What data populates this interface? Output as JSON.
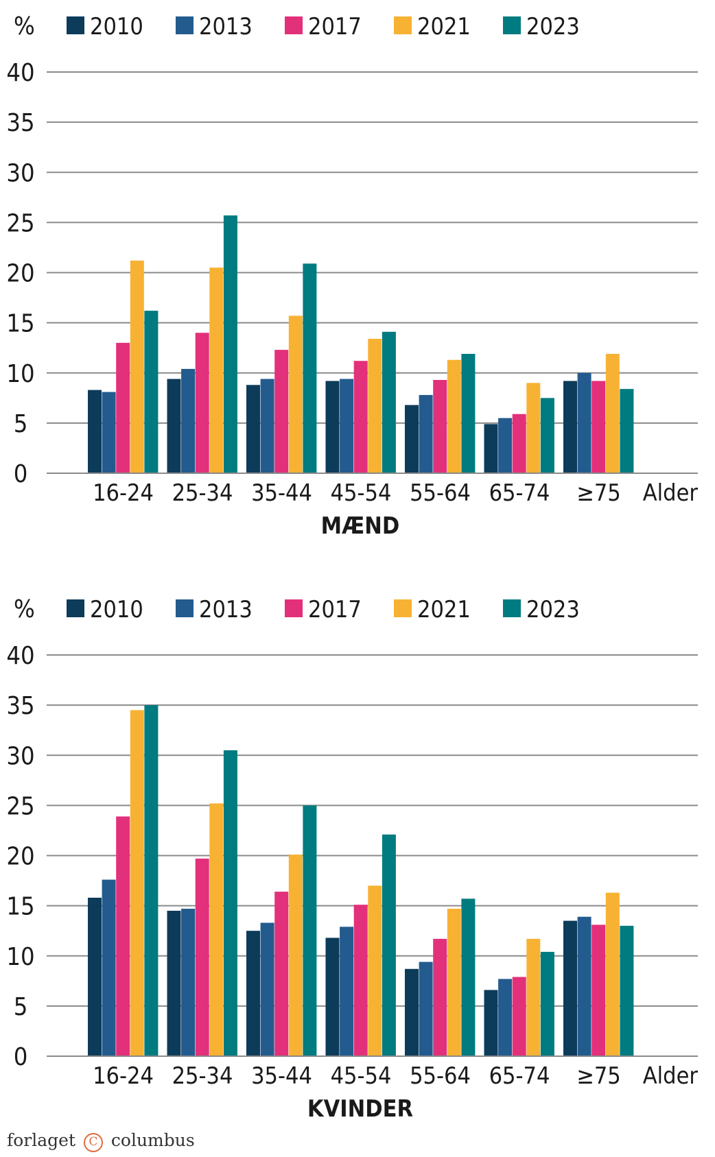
{
  "chart_data": [
    {
      "type": "bar",
      "title": "MÆND",
      "ylabel": "%",
      "xlabel": "Alder",
      "ylim": [
        0,
        40
      ],
      "yticks": [
        0,
        5,
        10,
        15,
        20,
        25,
        30,
        35,
        40
      ],
      "categories": [
        "16-24",
        "25-34",
        "35-44",
        "45-54",
        "55-64",
        "65-74",
        "≥75"
      ],
      "series": [
        {
          "name": "2010",
          "color": "#0d3b5a",
          "values": [
            8.3,
            9.4,
            8.8,
            9.2,
            6.8,
            4.9,
            9.2
          ]
        },
        {
          "name": "2013",
          "color": "#235b8e",
          "values": [
            8.1,
            10.4,
            9.4,
            9.4,
            7.8,
            5.5,
            10.0
          ]
        },
        {
          "name": "2017",
          "color": "#e3307a",
          "values": [
            13.0,
            14.0,
            12.3,
            11.2,
            9.3,
            5.9,
            9.2
          ]
        },
        {
          "name": "2021",
          "color": "#f7b233",
          "values": [
            21.2,
            20.5,
            15.7,
            13.4,
            11.3,
            9.0,
            11.9
          ]
        },
        {
          "name": "2023",
          "color": "#007b80",
          "values": [
            16.2,
            25.7,
            20.9,
            14.1,
            11.9,
            7.5,
            8.4
          ]
        }
      ]
    },
    {
      "type": "bar",
      "title": "KVINDER",
      "ylabel": "%",
      "xlabel": "Alder",
      "ylim": [
        0,
        40
      ],
      "yticks": [
        0,
        5,
        10,
        15,
        20,
        25,
        30,
        35,
        40
      ],
      "categories": [
        "16-24",
        "25-34",
        "35-44",
        "45-54",
        "55-64",
        "65-74",
        "≥75"
      ],
      "series": [
        {
          "name": "2010",
          "color": "#0d3b5a",
          "values": [
            15.8,
            14.5,
            12.5,
            11.8,
            8.7,
            6.6,
            13.5
          ]
        },
        {
          "name": "2013",
          "color": "#235b8e",
          "values": [
            17.6,
            14.7,
            13.3,
            12.9,
            9.4,
            7.7,
            13.9
          ]
        },
        {
          "name": "2017",
          "color": "#e3307a",
          "values": [
            23.9,
            19.7,
            16.4,
            15.1,
            11.7,
            7.9,
            13.1
          ]
        },
        {
          "name": "2021",
          "color": "#f7b233",
          "values": [
            34.5,
            25.2,
            20.1,
            17.0,
            14.7,
            11.7,
            16.3
          ]
        },
        {
          "name": "2023",
          "color": "#007b80",
          "values": [
            35.0,
            30.5,
            25.0,
            22.1,
            15.7,
            10.4,
            13.0
          ]
        }
      ]
    }
  ],
  "grid_color": "#8a8a8a",
  "publisher": {
    "name_left": "forlaget",
    "copyright_symbol": "C",
    "name_right": "columbus"
  }
}
